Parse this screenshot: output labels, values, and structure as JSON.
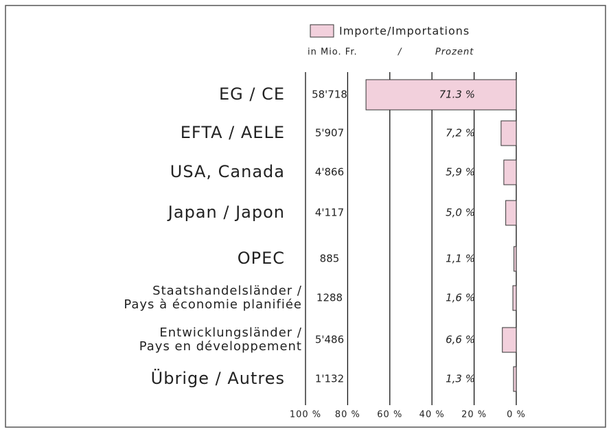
{
  "chart_data": {
    "type": "bar",
    "orientation": "horizontal-reversed",
    "legend_label": "Importe/Importations",
    "color": "#f2d0dc",
    "amount_header": "in Mio. Fr.",
    "header_separator": "/",
    "percent_header": "Prozent",
    "categories": [
      [
        "EG / CE"
      ],
      [
        "EFTA / AELE"
      ],
      [
        "USA, Canada"
      ],
      [
        "Japan / Japon"
      ],
      [
        "OPEC"
      ],
      [
        "Staatshandelsländer /",
        "Pays à économie planifiée"
      ],
      [
        "Entwicklungsländer /",
        "Pays en développement"
      ],
      [
        "Übrige / Autres"
      ]
    ],
    "amounts": [
      "58'718",
      "5'907",
      "4'866",
      "4'117",
      "885",
      "1288",
      "5'486",
      "1'132"
    ],
    "values": [
      71.3,
      7.2,
      5.9,
      5.0,
      1.1,
      1.6,
      6.6,
      1.3
    ],
    "value_labels": [
      "71.3 %",
      "7,2 %",
      "5,9 %",
      "5,0 %",
      "1,1 %",
      "1,6 %",
      "6,6 %",
      "1,3 %"
    ],
    "xlim": [
      100,
      0
    ],
    "xticks": [
      {
        "value": 100,
        "label": "100 %"
      },
      {
        "value": 80,
        "label": "80 %"
      },
      {
        "value": 60,
        "label": "60 %"
      },
      {
        "value": 40,
        "label": "40 %"
      },
      {
        "value": 20,
        "label": "20 %"
      },
      {
        "value": 0,
        "label": "0 %"
      }
    ],
    "grid": true
  }
}
